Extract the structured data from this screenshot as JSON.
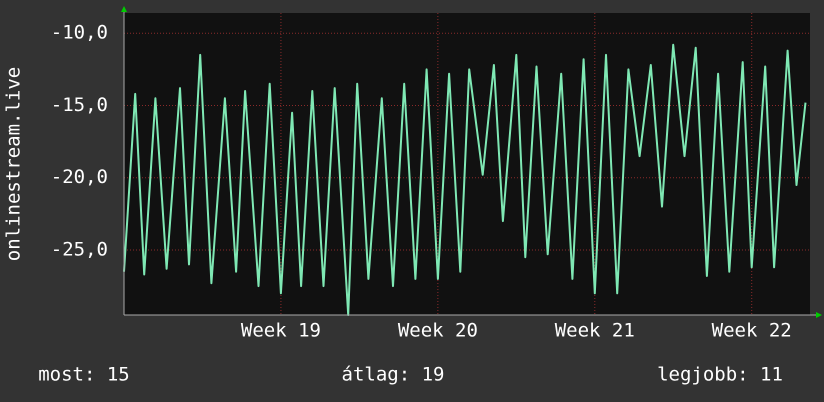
{
  "chart_data": {
    "type": "line",
    "y_label": "onlinestream.live",
    "x": [
      0.0,
      0.5,
      0.9,
      1.4,
      1.9,
      2.5,
      2.9,
      3.4,
      3.9,
      4.5,
      5.0,
      5.4,
      6.0,
      6.5,
      7.0,
      7.5,
      7.9,
      8.4,
      8.9,
      9.4,
      10.0,
      10.4,
      10.9,
      11.5,
      12.0,
      12.5,
      13.0,
      13.5,
      14.0,
      14.5,
      15.0,
      15.4,
      16.0,
      16.5,
      16.9,
      17.5,
      17.9,
      18.4,
      18.9,
      19.5,
      20.0,
      20.5,
      21.0,
      21.5,
      22.0,
      22.5,
      23.0,
      23.5,
      24.0,
      24.5,
      25.0,
      25.5,
      26.0,
      26.5,
      27.0,
      27.6,
      28.0,
      28.6,
      29.0,
      29.6,
      30.0,
      30.4
    ],
    "series": [
      {
        "color": "#7fe8b4",
        "values": [
          -26.5,
          -14.2,
          -26.7,
          -14.5,
          -26.3,
          -13.8,
          -26,
          -11.5,
          -27.3,
          -14.5,
          -26.5,
          -14,
          -27.5,
          -13.5,
          -28,
          -15.5,
          -27.5,
          -14,
          -27.5,
          -13.8,
          -29.5,
          -13.5,
          -27,
          -14.5,
          -27.5,
          -13.5,
          -27,
          -12.5,
          -27,
          -12.8,
          -26.5,
          -12.5,
          -19.8,
          -12.2,
          -23,
          -11.5,
          -25.5,
          -12.3,
          -25.3,
          -12.8,
          -27,
          -11.8,
          -28,
          -11.5,
          -28,
          -12.5,
          -18.5,
          -12.2,
          -22,
          -10.8,
          -18.5,
          -11,
          -26.8,
          -12.8,
          -26.5,
          -12,
          -26.2,
          -12.3,
          -26.2,
          -11.2,
          -20.5,
          -14.8
        ]
      }
    ],
    "xlim": [
      0,
      30.6
    ],
    "xticks": [
      {
        "value": 7,
        "label": "Week 19"
      },
      {
        "value": 14,
        "label": "Week 20"
      },
      {
        "value": 21,
        "label": "Week 21"
      },
      {
        "value": 28,
        "label": "Week 22"
      }
    ],
    "ylim": [
      -29.5,
      -8.6
    ],
    "yticks": [
      {
        "value": -10,
        "label": "-10,0"
      },
      {
        "value": -15,
        "label": "-15,0"
      },
      {
        "value": -20,
        "label": "-20,0"
      },
      {
        "value": -25,
        "label": "-25,0"
      }
    ],
    "grid": true,
    "footer": [
      "most: 15",
      "átlag: 19",
      "legjobb: 11"
    ]
  }
}
